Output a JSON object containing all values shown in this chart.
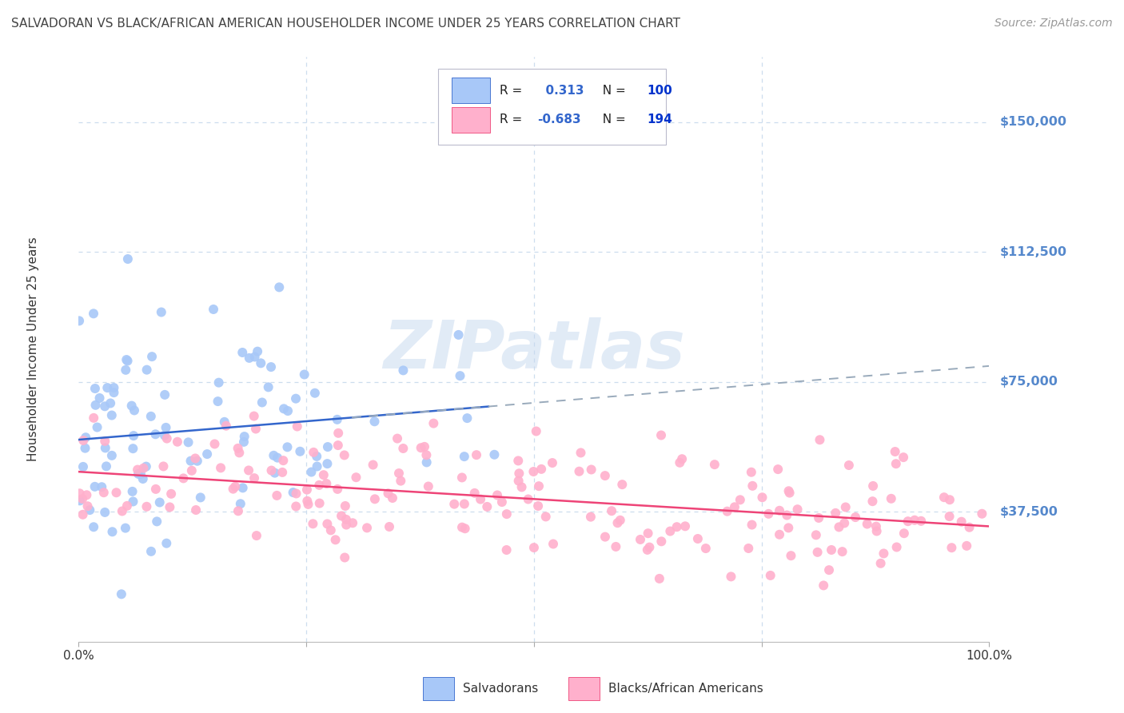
{
  "title": "SALVADORAN VS BLACK/AFRICAN AMERICAN HOUSEHOLDER INCOME UNDER 25 YEARS CORRELATION CHART",
  "source": "Source: ZipAtlas.com",
  "ylabel": "Householder Income Under 25 years",
  "ytick_labels": [
    "$37,500",
    "$75,000",
    "$112,500",
    "$150,000"
  ],
  "ytick_values": [
    37500,
    75000,
    112500,
    150000
  ],
  "ymin": 0,
  "ymax": 168750,
  "xmin": 0.0,
  "xmax": 1.0,
  "watermark": "ZIPatlas",
  "legend_blue_R": "0.313",
  "legend_blue_N": "100",
  "legend_pink_R": "-0.683",
  "legend_pink_N": "194",
  "blue_scatter_color": "#a8c8f8",
  "pink_scatter_color": "#ffb0cc",
  "blue_line_color": "#3366cc",
  "pink_line_color": "#ee4477",
  "dashed_line_color": "#99aabb",
  "title_color": "#444444",
  "axis_label_color": "#5588cc",
  "grid_color": "#ccddee",
  "background_color": "#ffffff",
  "legend_R_color": "#3366cc",
  "legend_N_color": "#0033cc",
  "source_color": "#999999",
  "ylabel_color": "#333333",
  "xtick_color": "#333333"
}
